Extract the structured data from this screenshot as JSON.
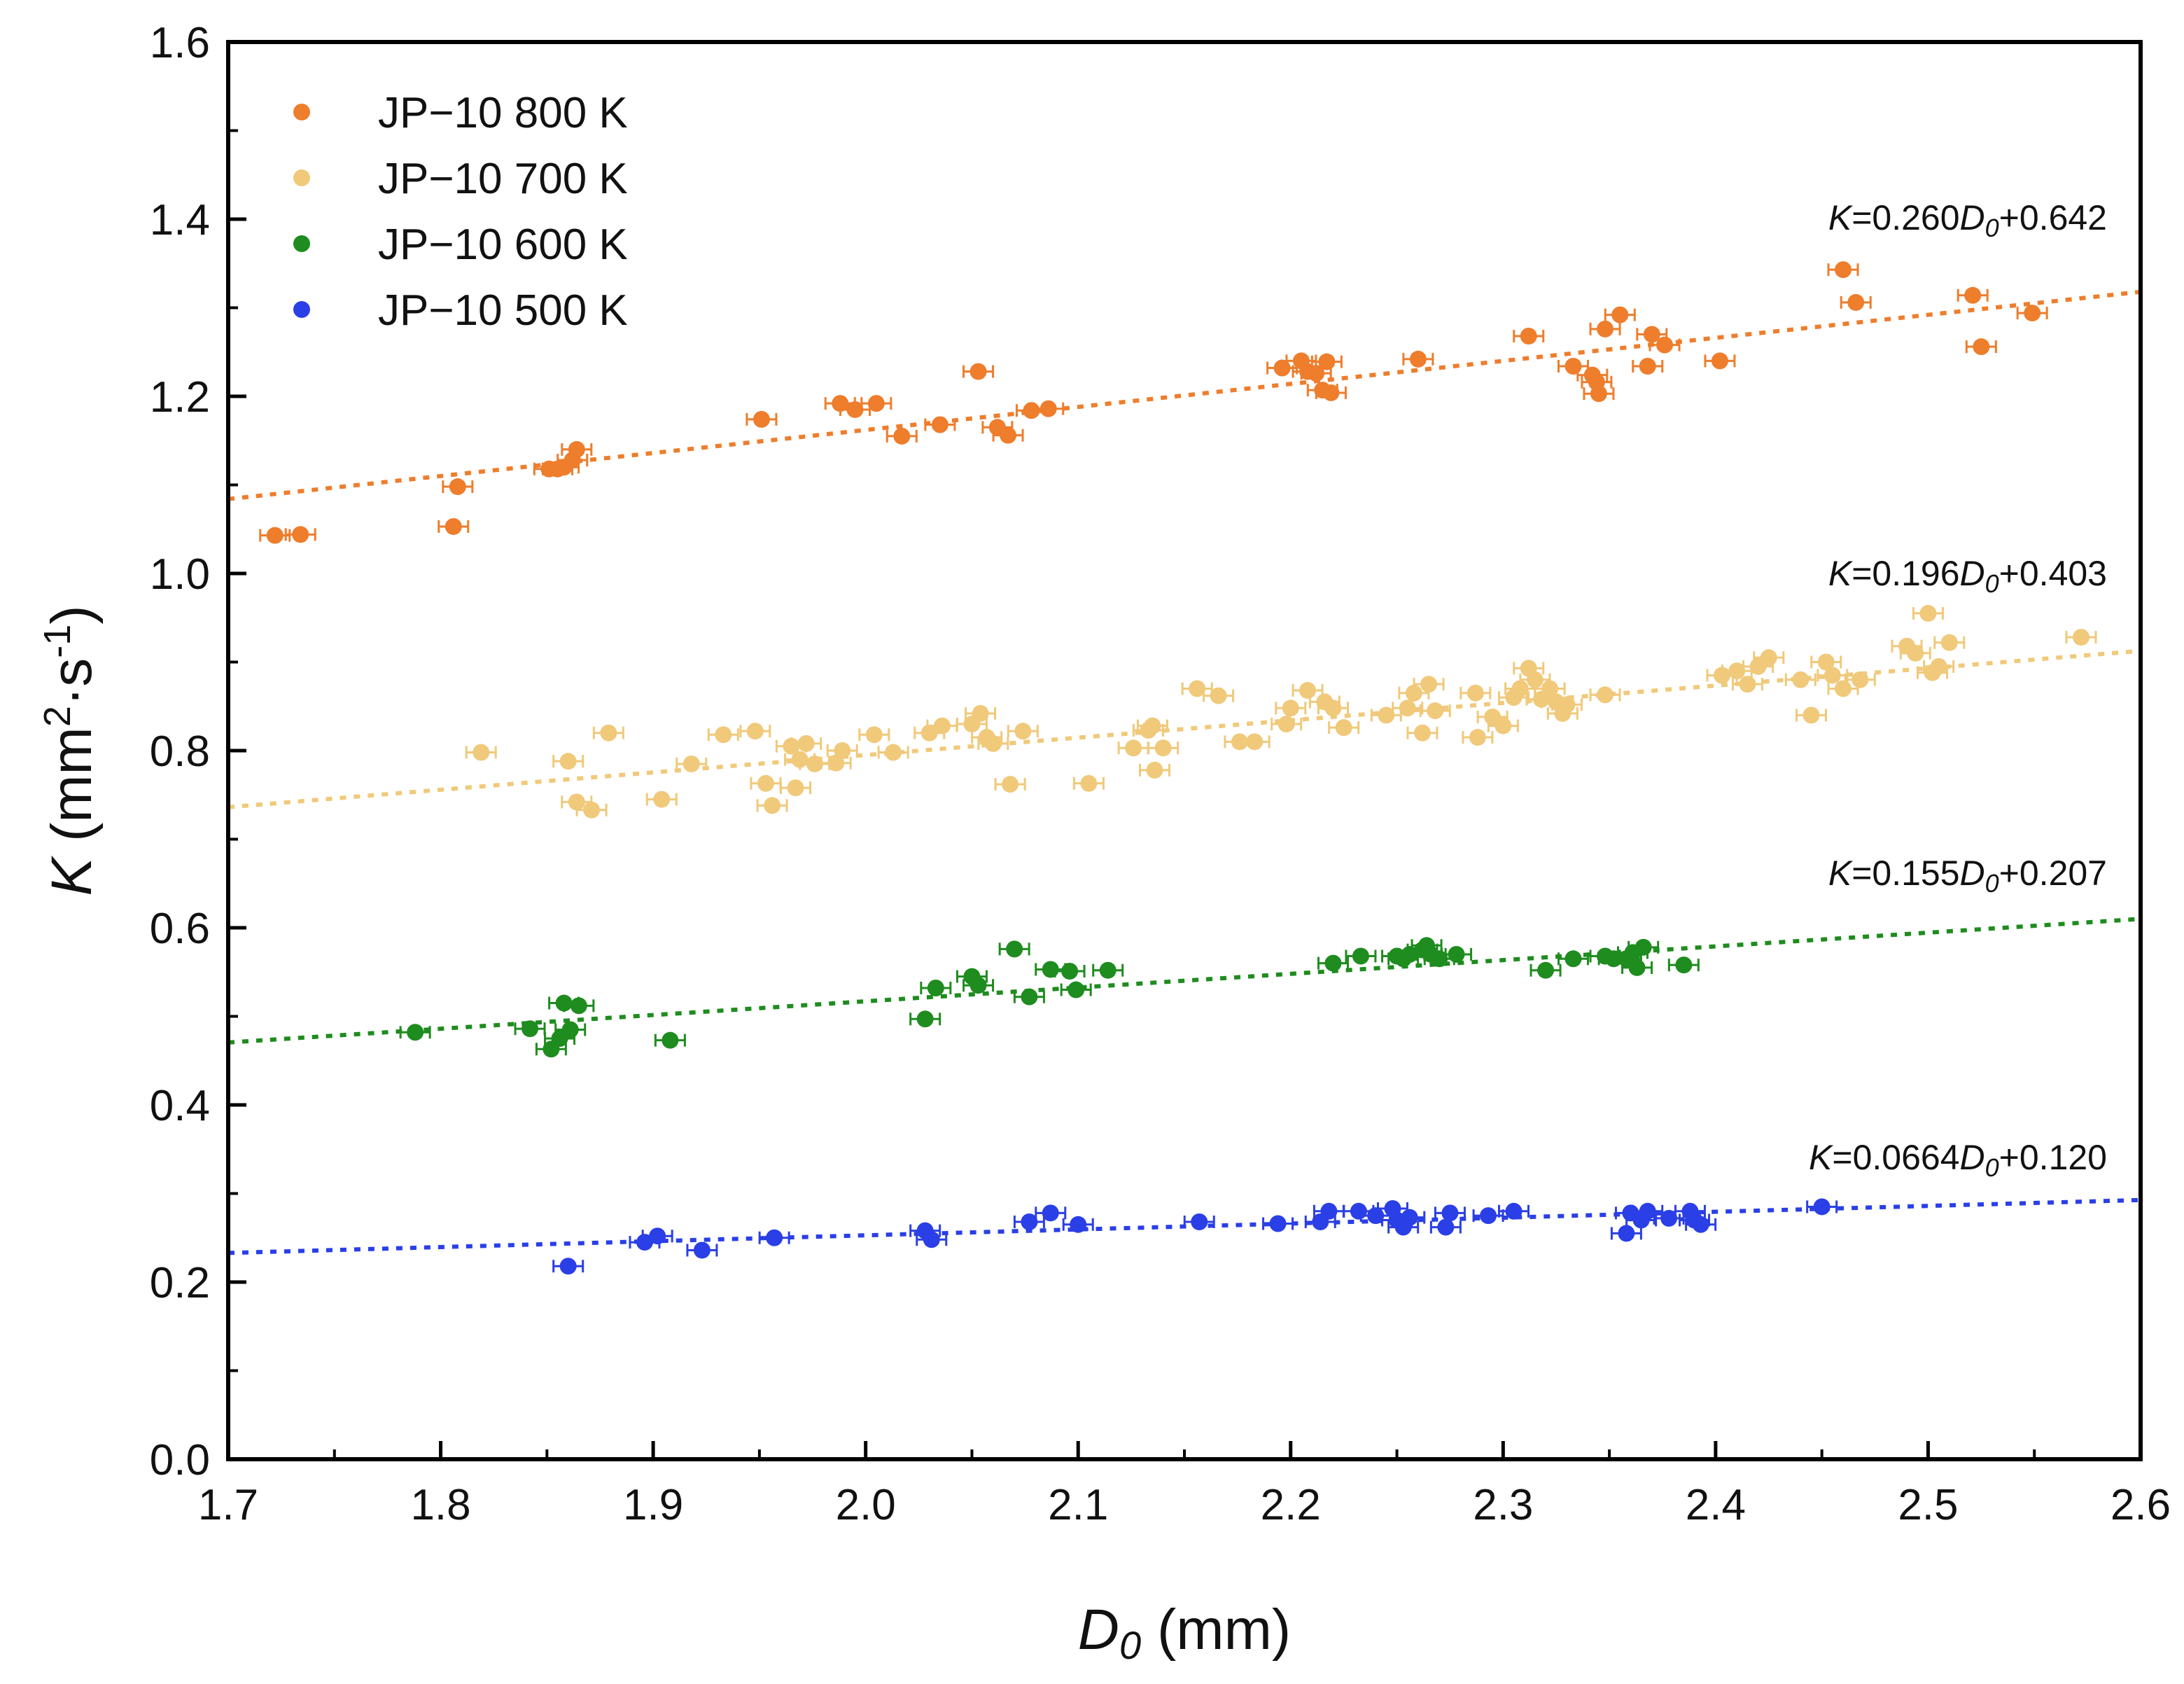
{
  "chart_data": {
    "type": "scatter",
    "title": "",
    "xlabel": {
      "main": "D",
      "sub": "0",
      "unit": " (mm)"
    },
    "ylabel": {
      "main": "K",
      "unit_pre": " (mm",
      "sup1": "2",
      "unit_mid": "·s",
      "sup2": "-1",
      "unit_post": ")"
    },
    "xlim": [
      1.7,
      2.6
    ],
    "ylim": [
      0.0,
      1.6
    ],
    "xticks": [
      "1.7",
      "1.8",
      "1.9",
      "2.0",
      "2.1",
      "2.2",
      "2.3",
      "2.4",
      "2.5",
      "2.6"
    ],
    "yticks": [
      "0.0",
      "0.2",
      "0.4",
      "0.6",
      "0.8",
      "1.0",
      "1.2",
      "1.4",
      "1.6"
    ],
    "grid": false,
    "legend_position": "top-left",
    "series": [
      {
        "name": "JP−10 800 K",
        "color": "#ee7d2c",
        "fit": {
          "slope": 0.26,
          "intercept": 0.642
        },
        "equation": {
          "k": "K",
          "eq": "=0.260",
          "d": "D",
          "sub": "0",
          "rest": "+0.642"
        },
        "points": [
          [
            1.722,
            1.043
          ],
          [
            1.734,
            1.044
          ],
          [
            1.806,
            1.053
          ],
          [
            1.808,
            1.098
          ],
          [
            1.851,
            1.118
          ],
          [
            1.855,
            1.118
          ],
          [
            1.858,
            1.12
          ],
          [
            1.862,
            1.128
          ],
          [
            1.864,
            1.14
          ],
          [
            1.988,
            1.192
          ],
          [
            1.995,
            1.185
          ],
          [
            2.005,
            1.192
          ],
          [
            2.017,
            1.155
          ],
          [
            2.035,
            1.168
          ],
          [
            2.053,
            1.228
          ],
          [
            2.062,
            1.165
          ],
          [
            2.067,
            1.156
          ],
          [
            2.078,
            1.184
          ],
          [
            2.086,
            1.186
          ],
          [
            1.951,
            1.174
          ],
          [
            2.196,
            1.232
          ],
          [
            2.205,
            1.24
          ],
          [
            2.208,
            1.228
          ],
          [
            2.212,
            1.226
          ],
          [
            2.215,
            1.207
          ],
          [
            2.217,
            1.239
          ],
          [
            2.219,
            1.204
          ],
          [
            2.26,
            1.242
          ],
          [
            2.312,
            1.268
          ],
          [
            2.333,
            1.234
          ],
          [
            2.342,
            1.224
          ],
          [
            2.344,
            1.216
          ],
          [
            2.345,
            1.203
          ],
          [
            2.348,
            1.276
          ],
          [
            2.355,
            1.292
          ],
          [
            2.368,
            1.234
          ],
          [
            2.37,
            1.27
          ],
          [
            2.376,
            1.258
          ],
          [
            2.402,
            1.24
          ],
          [
            2.46,
            1.343
          ],
          [
            2.466,
            1.306
          ],
          [
            2.521,
            1.314
          ],
          [
            2.525,
            1.256
          ],
          [
            2.549,
            1.294
          ]
        ]
      },
      {
        "name": "JP−10 700 K",
        "color": "#f0c97a",
        "fit": {
          "slope": 0.196,
          "intercept": 0.403
        },
        "equation": {
          "k": "K",
          "eq": "=0.196",
          "d": "D",
          "sub": "0",
          "rest": "+0.403"
        },
        "points": [
          [
            1.819,
            0.798
          ],
          [
            1.86,
            0.788
          ],
          [
            1.864,
            0.742
          ],
          [
            1.871,
            0.733
          ],
          [
            1.879,
            0.82
          ],
          [
            1.904,
            0.745
          ],
          [
            1.918,
            0.785
          ],
          [
            1.933,
            0.818
          ],
          [
            1.948,
            0.822
          ],
          [
            1.953,
            0.763
          ],
          [
            1.956,
            0.738
          ],
          [
            1.965,
            0.805
          ],
          [
            1.967,
            0.758
          ],
          [
            1.969,
            0.79
          ],
          [
            1.972,
            0.808
          ],
          [
            1.976,
            0.785
          ],
          [
            1.986,
            0.786
          ],
          [
            1.989,
            0.8
          ],
          [
            2.004,
            0.818
          ],
          [
            2.013,
            0.798
          ],
          [
            2.03,
            0.82
          ],
          [
            2.036,
            0.828
          ],
          [
            2.05,
            0.83
          ],
          [
            2.054,
            0.842
          ],
          [
            2.057,
            0.815
          ],
          [
            2.06,
            0.808
          ],
          [
            2.068,
            0.762
          ],
          [
            2.074,
            0.822
          ],
          [
            2.105,
            0.763
          ],
          [
            2.126,
            0.803
          ],
          [
            2.133,
            0.823
          ],
          [
            2.135,
            0.828
          ],
          [
            2.136,
            0.778
          ],
          [
            2.14,
            0.803
          ],
          [
            2.156,
            0.87
          ],
          [
            2.166,
            0.862
          ],
          [
            2.176,
            0.81
          ],
          [
            2.183,
            0.81
          ],
          [
            2.198,
            0.83
          ],
          [
            2.2,
            0.848
          ],
          [
            2.208,
            0.868
          ],
          [
            2.216,
            0.855
          ],
          [
            2.22,
            0.848
          ],
          [
            2.225,
            0.826
          ],
          [
            2.245,
            0.84
          ],
          [
            2.255,
            0.848
          ],
          [
            2.258,
            0.865
          ],
          [
            2.262,
            0.82
          ],
          [
            2.265,
            0.875
          ],
          [
            2.268,
            0.845
          ],
          [
            2.287,
            0.865
          ],
          [
            2.288,
            0.815
          ],
          [
            2.295,
            0.838
          ],
          [
            2.3,
            0.828
          ],
          [
            2.305,
            0.86
          ],
          [
            2.308,
            0.87
          ],
          [
            2.312,
            0.893
          ],
          [
            2.315,
            0.88
          ],
          [
            2.318,
            0.858
          ],
          [
            2.322,
            0.87
          ],
          [
            2.325,
            0.855
          ],
          [
            2.328,
            0.842
          ],
          [
            2.33,
            0.852
          ],
          [
            2.348,
            0.863
          ],
          [
            2.403,
            0.885
          ],
          [
            2.41,
            0.89
          ],
          [
            2.415,
            0.875
          ],
          [
            2.42,
            0.895
          ],
          [
            2.425,
            0.905
          ],
          [
            2.44,
            0.88
          ],
          [
            2.445,
            0.84
          ],
          [
            2.452,
            0.9
          ],
          [
            2.455,
            0.885
          ],
          [
            2.46,
            0.87
          ],
          [
            2.468,
            0.88
          ],
          [
            2.49,
            0.918
          ],
          [
            2.494,
            0.91
          ],
          [
            2.5,
            0.955
          ],
          [
            2.502,
            0.888
          ],
          [
            2.505,
            0.895
          ],
          [
            2.51,
            0.922
          ],
          [
            2.572,
            0.928
          ]
        ]
      },
      {
        "name": "JP−10 600 K",
        "color": "#1e8c1e",
        "fit": {
          "slope": 0.155,
          "intercept": 0.207
        },
        "equation": {
          "k": "K",
          "eq": "=0.155",
          "d": "D",
          "sub": "0",
          "rest": "+0.207"
        },
        "points": [
          [
            1.788,
            0.482
          ],
          [
            1.842,
            0.486
          ],
          [
            1.852,
            0.463
          ],
          [
            1.856,
            0.475
          ],
          [
            1.858,
            0.515
          ],
          [
            1.861,
            0.485
          ],
          [
            1.865,
            0.512
          ],
          [
            1.908,
            0.473
          ],
          [
            2.028,
            0.497
          ],
          [
            2.033,
            0.532
          ],
          [
            2.05,
            0.545
          ],
          [
            2.053,
            0.535
          ],
          [
            2.07,
            0.576
          ],
          [
            2.077,
            0.522
          ],
          [
            2.087,
            0.553
          ],
          [
            2.096,
            0.551
          ],
          [
            2.099,
            0.53
          ],
          [
            2.114,
            0.552
          ],
          [
            2.22,
            0.56
          ],
          [
            2.233,
            0.568
          ],
          [
            2.25,
            0.568
          ],
          [
            2.253,
            0.565
          ],
          [
            2.256,
            0.57
          ],
          [
            2.262,
            0.575
          ],
          [
            2.264,
            0.58
          ],
          [
            2.266,
            0.57
          ],
          [
            2.27,
            0.565
          ],
          [
            2.278,
            0.57
          ],
          [
            2.32,
            0.552
          ],
          [
            2.333,
            0.565
          ],
          [
            2.348,
            0.568
          ],
          [
            2.352,
            0.565
          ],
          [
            2.358,
            0.565
          ],
          [
            2.361,
            0.572
          ],
          [
            2.363,
            0.555
          ],
          [
            2.366,
            0.578
          ],
          [
            2.385,
            0.558
          ]
        ]
      },
      {
        "name": "JP−10 500 K",
        "color": "#2a3fe6",
        "fit": {
          "slope": 0.0664,
          "intercept": 0.12
        },
        "equation": {
          "k": "K",
          "eq": "=0.0664",
          "d": "D",
          "sub": "0",
          "rest": "+0.120"
        },
        "points": [
          [
            1.86,
            0.218
          ],
          [
            1.896,
            0.245
          ],
          [
            1.902,
            0.252
          ],
          [
            1.923,
            0.236
          ],
          [
            1.957,
            0.25
          ],
          [
            2.028,
            0.258
          ],
          [
            2.031,
            0.248
          ],
          [
            2.077,
            0.268
          ],
          [
            2.087,
            0.278
          ],
          [
            2.1,
            0.265
          ],
          [
            2.157,
            0.268
          ],
          [
            2.194,
            0.266
          ],
          [
            2.214,
            0.268
          ],
          [
            2.218,
            0.28
          ],
          [
            2.232,
            0.28
          ],
          [
            2.24,
            0.275
          ],
          [
            2.248,
            0.283
          ],
          [
            2.25,
            0.27
          ],
          [
            2.253,
            0.262
          ],
          [
            2.256,
            0.273
          ],
          [
            2.273,
            0.262
          ],
          [
            2.275,
            0.278
          ],
          [
            2.293,
            0.275
          ],
          [
            2.305,
            0.28
          ],
          [
            2.358,
            0.255
          ],
          [
            2.36,
            0.278
          ],
          [
            2.365,
            0.27
          ],
          [
            2.368,
            0.28
          ],
          [
            2.378,
            0.272
          ],
          [
            2.388,
            0.28
          ],
          [
            2.39,
            0.27
          ],
          [
            2.393,
            0.265
          ],
          [
            2.45,
            0.285
          ]
        ]
      }
    ]
  }
}
